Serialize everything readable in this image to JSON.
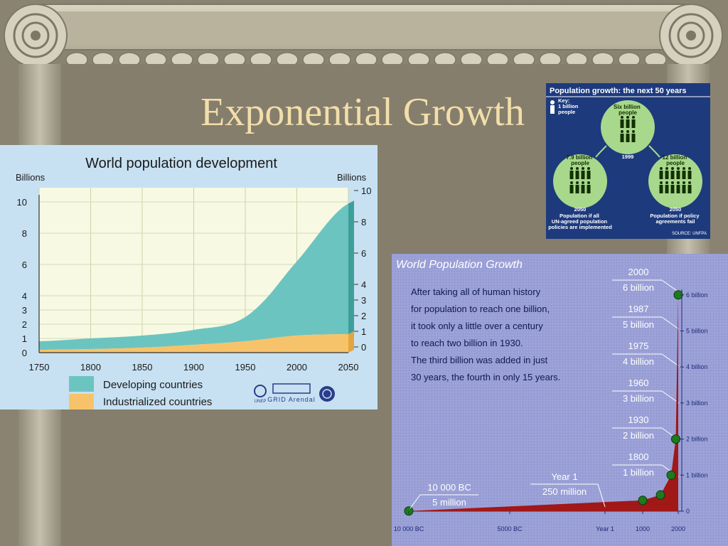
{
  "slide": {
    "title": "Exponential Growth"
  },
  "chart_data": [
    {
      "type": "area",
      "title": "World population development",
      "ylabel_left": "Billions",
      "ylabel_right": "Billions",
      "x_ticks": [
        "1750",
        "1800",
        "1850",
        "1900",
        "1950",
        "2000",
        "2050"
      ],
      "y_left_ticks": [
        "0",
        "1",
        "2",
        "3",
        "4",
        "6",
        "8",
        "10"
      ],
      "y_right_ticks": [
        "0",
        "1",
        "2",
        "3",
        "4",
        "6",
        "8",
        "10"
      ],
      "xlim": [
        1750,
        2050
      ],
      "ylim": [
        0,
        10
      ],
      "x": [
        1750,
        1800,
        1850,
        1900,
        1950,
        2000,
        2050
      ],
      "series": [
        {
          "name": "Industrialized countries",
          "color": "#f7c36a",
          "values": [
            0.2,
            0.25,
            0.35,
            0.55,
            0.8,
            1.2,
            1.3
          ]
        },
        {
          "name": "Developing countries",
          "color": "#6cc4c0",
          "values": [
            0.6,
            0.75,
            0.85,
            1.05,
            1.7,
            5.0,
            8.6
          ]
        }
      ],
      "logos": [
        "UNEP",
        "GRID Arendal"
      ]
    },
    {
      "type": "table",
      "title": "Population growth: the next 50 years",
      "key": "Key:\n1 billion\npeople",
      "key_lines": [
        "Key:",
        "1 billion",
        "people"
      ],
      "nodes": [
        {
          "label_lines": [
            "Six billion",
            "people"
          ],
          "year": "1999",
          "value": 6
        },
        {
          "label_lines": [
            "7.9 billion",
            "people"
          ],
          "year": "2050",
          "note_lines": [
            "Population if all",
            "UN-agreed population",
            "policies are implemented"
          ],
          "value": 7.9
        },
        {
          "label_lines": [
            "12 billion",
            "people"
          ],
          "year": "2050",
          "note_lines": [
            "Population if policy",
            "agreements fail"
          ],
          "value": 12
        }
      ],
      "source": "SOURCE: UNFPA"
    },
    {
      "type": "line",
      "title": "World Population Growth",
      "text_lines": [
        "After taking all of human history",
        "for population to reach one billion,",
        "it took only a little over a century",
        "to reach two billion in 1930.",
        "The third billion was added in just",
        "30 years, the fourth in only 15 years."
      ],
      "x_ticks": [
        "10 000 BC",
        "5000 BC",
        "Year 1",
        "1000",
        "2000"
      ],
      "y_right_ticks": [
        "0",
        "1 billion",
        "2 billion",
        "3 billion",
        "4 billion",
        "5 billion",
        "6 billion"
      ],
      "milestones": [
        {
          "year": "2000",
          "value": "6 billion"
        },
        {
          "year": "1987",
          "value": "5 billion"
        },
        {
          "year": "1975",
          "value": "4 billion"
        },
        {
          "year": "1960",
          "value": "3 billion"
        },
        {
          "year": "1930",
          "value": "2 billion"
        },
        {
          "year": "1800",
          "value": "1 billion"
        }
      ],
      "callouts": [
        {
          "year": "Year 1",
          "value": "250 million"
        },
        {
          "year": "10 000 BC",
          "value": "5 million"
        }
      ],
      "points": [
        {
          "x": -10000,
          "y": 0.005
        },
        {
          "x": 1000,
          "y": 0.3
        },
        {
          "x": 1500,
          "y": 0.45
        },
        {
          "x": 1800,
          "y": 1.0
        },
        {
          "x": 1930,
          "y": 2.0
        },
        {
          "x": 2000,
          "y": 6.0
        }
      ],
      "curve_color": "#a11818",
      "point_color": "#1e7a1e"
    }
  ]
}
